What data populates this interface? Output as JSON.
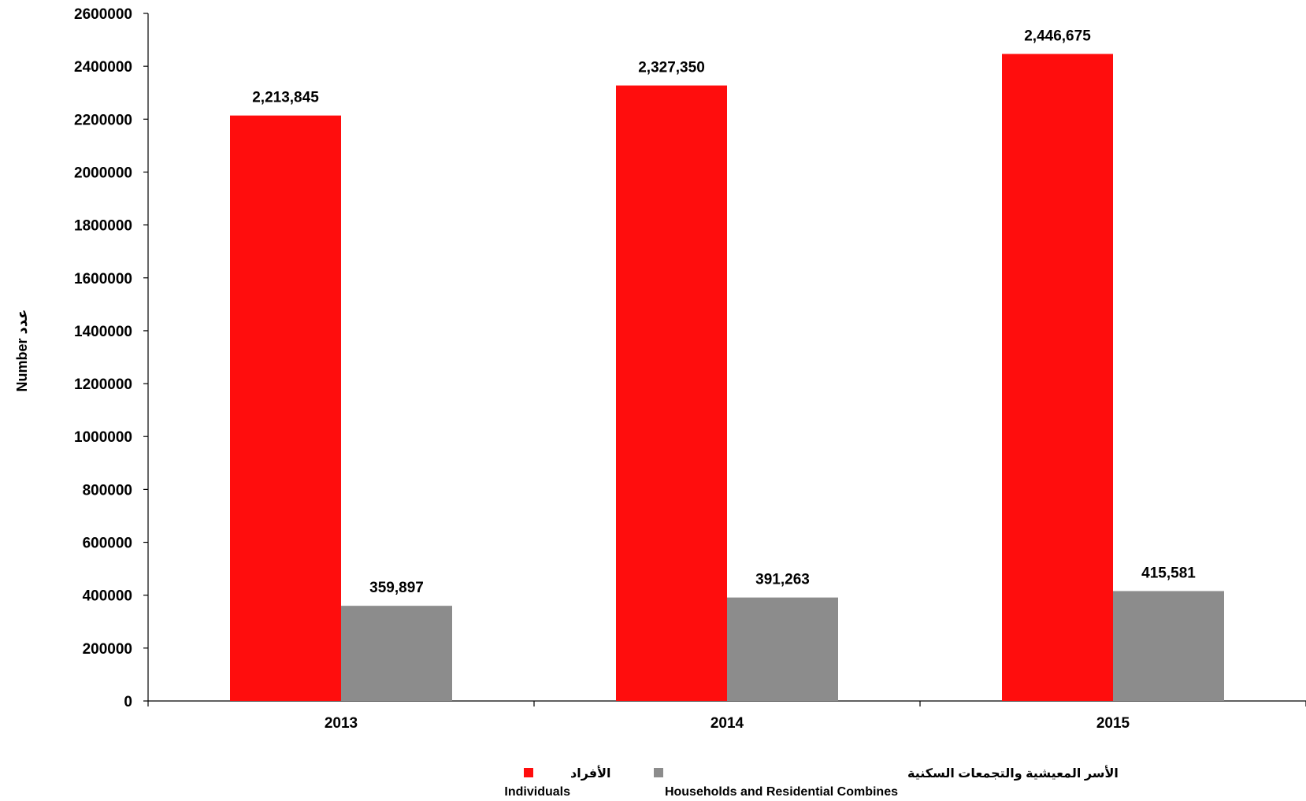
{
  "chart_data": {
    "type": "bar",
    "categories": [
      "2013",
      "2014",
      "2015"
    ],
    "series": [
      {
        "name": "Individuals",
        "name_ar": "الأفراد",
        "color": "#ff0d0d",
        "values": [
          2213845,
          2327350,
          2446675
        ],
        "data_labels": [
          "2,213,845",
          "2,327,350",
          "2,446,675"
        ]
      },
      {
        "name": "Households and Residential Combines",
        "name_ar": "الأسر المعيشية والتجمعات السكنية",
        "color": "#8c8c8c",
        "values": [
          359897,
          391263,
          415581
        ],
        "data_labels": [
          "359,897",
          "391,263",
          "415,581"
        ]
      }
    ],
    "ylabel": "Number عدد",
    "xlabel": "",
    "ylim": [
      0,
      2600000
    ],
    "yticks": [
      "0",
      "200000",
      "400000",
      "600000",
      "800000",
      "1000000",
      "1200000",
      "1400000",
      "1600000",
      "1800000",
      "2000000",
      "2200000",
      "2400000",
      "2600000"
    ],
    "grid": false,
    "legend_position": "bottom"
  }
}
